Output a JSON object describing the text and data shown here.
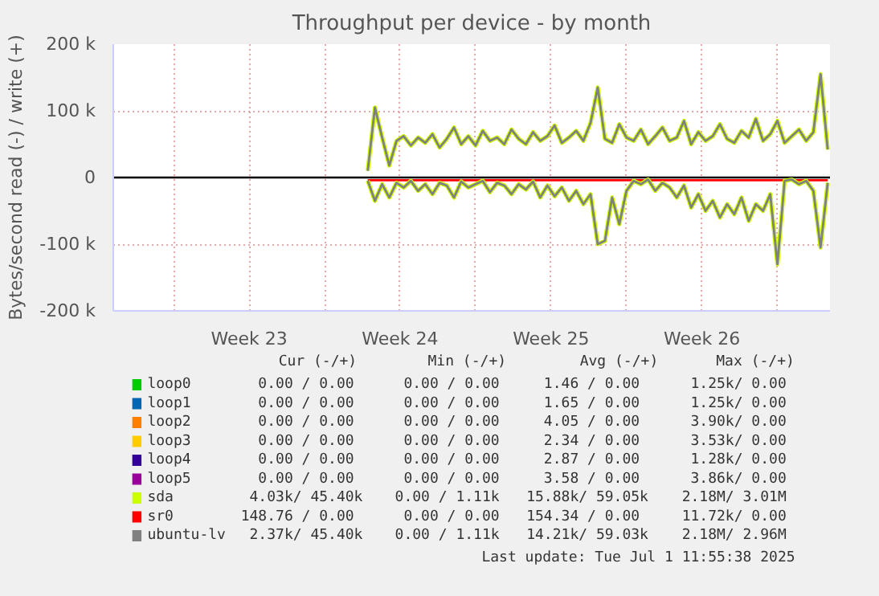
{
  "chart_data": {
    "type": "line",
    "title": "Throughput per device - by month",
    "ylabel": "Bytes/second read (-) / write (+)",
    "xlim": [
      "2025-05-29T04:45",
      "2025-07-01T10:30"
    ],
    "xticks": [
      {
        "value": "2025-06-01",
        "label": null
      },
      {
        "value": "2025-06-04T12:00",
        "label": "Week 23"
      },
      {
        "value": "2025-06-08",
        "label": null
      },
      {
        "value": "2025-06-11T12:00",
        "label": "Week 24"
      },
      {
        "value": "2025-06-15",
        "label": null
      },
      {
        "value": "2025-06-18T12:00",
        "label": "Week 25"
      },
      {
        "value": "2025-06-22",
        "label": null
      },
      {
        "value": "2025-06-25T12:00",
        "label": "Week 26"
      },
      {
        "value": "2025-06-29",
        "label": null
      }
    ],
    "ylim": [
      -200000,
      200000
    ],
    "yticks": [
      {
        "value": -200000,
        "label": "-200 k"
      },
      {
        "value": -100000,
        "label": "-100 k"
      },
      0,
      {
        "value": 100000,
        "label": "100 k"
      },
      {
        "value": 200000,
        "label": "200 k"
      }
    ],
    "grid": true,
    "legend": "bottom",
    "ref_lines": [
      {
        "axis": "y",
        "value": 0,
        "color": "#000000"
      }
    ],
    "x": [
      "2025-06-10T00:00",
      "2025-06-10T08:00",
      "2025-06-10T16:00",
      "2025-06-11T00:00",
      "2025-06-11T08:00",
      "2025-06-11T16:00",
      "2025-06-12T00:00",
      "2025-06-12T08:00",
      "2025-06-12T16:00",
      "2025-06-13T00:00",
      "2025-06-13T08:00",
      "2025-06-13T16:00",
      "2025-06-14T00:00",
      "2025-06-14T08:00",
      "2025-06-14T16:00",
      "2025-06-15T00:00",
      "2025-06-15T08:00",
      "2025-06-15T16:00",
      "2025-06-16T00:00",
      "2025-06-16T08:00",
      "2025-06-16T16:00",
      "2025-06-17T00:00",
      "2025-06-17T08:00",
      "2025-06-17T16:00",
      "2025-06-18T00:00",
      "2025-06-18T08:00",
      "2025-06-18T16:00",
      "2025-06-19T00:00",
      "2025-06-19T08:00",
      "2025-06-19T16:00",
      "2025-06-20T00:00",
      "2025-06-20T08:00",
      "2025-06-20T16:00",
      "2025-06-21T00:00",
      "2025-06-21T08:00",
      "2025-06-21T16:00",
      "2025-06-22T00:00",
      "2025-06-22T08:00",
      "2025-06-22T16:00",
      "2025-06-23T00:00",
      "2025-06-23T08:00",
      "2025-06-23T16:00",
      "2025-06-24T00:00",
      "2025-06-24T08:00",
      "2025-06-24T16:00",
      "2025-06-25T00:00",
      "2025-06-25T08:00",
      "2025-06-25T16:00",
      "2025-06-26T00:00",
      "2025-06-26T08:00",
      "2025-06-26T16:00",
      "2025-06-27T00:00",
      "2025-06-27T08:00",
      "2025-06-27T16:00",
      "2025-06-28T00:00",
      "2025-06-28T08:00",
      "2025-06-28T16:00",
      "2025-06-29T00:00",
      "2025-06-29T08:00",
      "2025-06-29T16:00",
      "2025-06-30T00:00",
      "2025-06-30T08:00",
      "2025-06-30T16:00",
      "2025-07-01T00:00",
      "2025-07-01T08:00"
    ],
    "series": [
      {
        "name": "loop0",
        "color": "#00cc00",
        "values": [
          null,
          null,
          null,
          null,
          null,
          null,
          null,
          null,
          null,
          null,
          null,
          null,
          null,
          null,
          null,
          null,
          null,
          null,
          null,
          null,
          null,
          null,
          null,
          null,
          null,
          null,
          null,
          null,
          null,
          null,
          null,
          null,
          null,
          null,
          null,
          null,
          null,
          null,
          null,
          null,
          null,
          null,
          null,
          null,
          null,
          null,
          null,
          null,
          null,
          null,
          null,
          null,
          null,
          null,
          null,
          null,
          null,
          null,
          null,
          null,
          null,
          null,
          null,
          null,
          null
        ]
      },
      {
        "name": "loop1",
        "color": "#0066b3",
        "values": [
          null,
          null,
          null,
          null,
          null,
          null,
          null,
          null,
          null,
          null,
          null,
          null,
          null,
          null,
          null,
          null,
          null,
          null,
          null,
          null,
          null,
          null,
          null,
          null,
          null,
          null,
          null,
          null,
          null,
          null,
          null,
          null,
          null,
          null,
          null,
          null,
          null,
          null,
          null,
          null,
          null,
          null,
          null,
          null,
          null,
          null,
          null,
          null,
          null,
          null,
          null,
          null,
          null,
          null,
          null,
          null,
          null,
          null,
          null,
          null,
          null,
          null,
          null,
          null,
          null
        ]
      },
      {
        "name": "loop2",
        "color": "#ff8000",
        "values": [
          null,
          null,
          null,
          null,
          null,
          null,
          null,
          null,
          null,
          null,
          null,
          null,
          null,
          null,
          null,
          null,
          null,
          null,
          null,
          null,
          null,
          null,
          null,
          null,
          null,
          null,
          null,
          null,
          null,
          null,
          null,
          null,
          null,
          null,
          null,
          null,
          null,
          null,
          null,
          null,
          null,
          null,
          null,
          null,
          null,
          null,
          null,
          null,
          null,
          null,
          null,
          null,
          null,
          null,
          null,
          null,
          null,
          null,
          null,
          null,
          null,
          null,
          null,
          null,
          null
        ]
      },
      {
        "name": "loop3",
        "color": "#ffcc00",
        "values": [
          null,
          null,
          null,
          null,
          null,
          null,
          null,
          null,
          null,
          null,
          null,
          null,
          null,
          null,
          null,
          null,
          null,
          null,
          null,
          null,
          null,
          null,
          null,
          null,
          null,
          null,
          null,
          null,
          null,
          null,
          null,
          null,
          null,
          null,
          null,
          null,
          null,
          null,
          null,
          null,
          null,
          null,
          null,
          null,
          null,
          null,
          null,
          null,
          null,
          null,
          null,
          null,
          null,
          null,
          null,
          null,
          null,
          null,
          null,
          null,
          null,
          null,
          null,
          null,
          null
        ]
      },
      {
        "name": "loop4",
        "color": "#330099",
        "values": [
          null,
          null,
          null,
          null,
          null,
          null,
          null,
          null,
          null,
          null,
          null,
          null,
          null,
          null,
          null,
          null,
          null,
          null,
          null,
          null,
          null,
          null,
          null,
          null,
          null,
          null,
          null,
          null,
          null,
          null,
          null,
          null,
          null,
          null,
          null,
          null,
          null,
          null,
          null,
          null,
          null,
          null,
          null,
          null,
          null,
          null,
          null,
          null,
          null,
          null,
          null,
          null,
          null,
          null,
          null,
          null,
          null,
          null,
          null,
          null,
          null,
          null,
          null,
          null,
          null
        ]
      },
      {
        "name": "loop5",
        "color": "#990099",
        "values": [
          null,
          null,
          null,
          null,
          null,
          null,
          null,
          null,
          null,
          null,
          null,
          null,
          null,
          null,
          null,
          null,
          null,
          null,
          null,
          null,
          null,
          null,
          null,
          null,
          null,
          null,
          null,
          null,
          null,
          null,
          null,
          null,
          null,
          null,
          null,
          null,
          null,
          null,
          null,
          null,
          null,
          null,
          null,
          null,
          null,
          null,
          null,
          null,
          null,
          null,
          null,
          null,
          null,
          null,
          null,
          null,
          null,
          null,
          null,
          null,
          null,
          null,
          null,
          null,
          null
        ]
      },
      {
        "name": "sda",
        "color": "#ccff00",
        "values": [
          10000,
          105000,
          60000,
          18000,
          55000,
          62000,
          48000,
          60000,
          52000,
          65000,
          45000,
          58000,
          75000,
          50000,
          62000,
          48000,
          70000,
          55000,
          60000,
          50000,
          72000,
          58000,
          50000,
          68000,
          55000,
          62000,
          78000,
          52000,
          60000,
          70000,
          55000,
          82000,
          135000,
          58000,
          52000,
          80000,
          60000,
          55000,
          72000,
          50000,
          62000,
          75000,
          55000,
          60000,
          85000,
          50000,
          68000,
          55000,
          62000,
          80000,
          58000,
          52000,
          70000,
          60000,
          88000,
          55000,
          65000,
          85000,
          52000,
          62000,
          72000,
          55000,
          68000,
          155000,
          42000
        ]
      },
      {
        "name": "sr0",
        "color": "#ff0000",
        "x": [
          "2025-06-10T00:00",
          "2025-07-01T08:00"
        ],
        "values": [
          -4000,
          -4000
        ]
      },
      {
        "name": "ubuntu-lv",
        "color": "#808080",
        "values": [
          10000,
          105000,
          60000,
          18000,
          55000,
          62000,
          48000,
          60000,
          52000,
          65000,
          45000,
          58000,
          75000,
          50000,
          62000,
          48000,
          70000,
          55000,
          60000,
          50000,
          72000,
          58000,
          50000,
          68000,
          55000,
          62000,
          78000,
          52000,
          60000,
          70000,
          55000,
          82000,
          135000,
          58000,
          52000,
          80000,
          60000,
          55000,
          72000,
          50000,
          62000,
          75000,
          55000,
          60000,
          85000,
          50000,
          68000,
          55000,
          62000,
          80000,
          58000,
          52000,
          70000,
          60000,
          88000,
          55000,
          65000,
          85000,
          52000,
          62000,
          72000,
          55000,
          68000,
          155000,
          42000
        ]
      },
      {
        "color": "#ccff00",
        "values": [
          -5000,
          -35000,
          -10000,
          -30000,
          -8000,
          -15000,
          -5000,
          -20000,
          -10000,
          -25000,
          -8000,
          -12000,
          -30000,
          -6000,
          -15000,
          -10000,
          -5000,
          -22000,
          -8000,
          -12000,
          -25000,
          -10000,
          -18000,
          -6000,
          -30000,
          -12000,
          -28000,
          -15000,
          -35000,
          -20000,
          -40000,
          -25000,
          -100000,
          -95000,
          -30000,
          -70000,
          -20000,
          -5000,
          -10000,
          -3000,
          -20000,
          -8000,
          -15000,
          -30000,
          -12000,
          -45000,
          -25000,
          -50000,
          -35000,
          -60000,
          -40000,
          -55000,
          -30000,
          -65000,
          -40000,
          -50000,
          -25000,
          -130000,
          -5000,
          -3000,
          -10000,
          -5000,
          -20000,
          -105000,
          -8000
        ]
      },
      {
        "color": "#808080",
        "values": [
          -5000,
          -35000,
          -10000,
          -30000,
          -8000,
          -15000,
          -5000,
          -20000,
          -10000,
          -25000,
          -8000,
          -12000,
          -30000,
          -6000,
          -15000,
          -10000,
          -5000,
          -22000,
          -8000,
          -12000,
          -25000,
          -10000,
          -18000,
          -6000,
          -30000,
          -12000,
          -28000,
          -15000,
          -35000,
          -20000,
          -40000,
          -25000,
          -100000,
          -95000,
          -30000,
          -70000,
          -20000,
          -5000,
          -10000,
          -3000,
          -20000,
          -8000,
          -15000,
          -30000,
          -12000,
          -45000,
          -25000,
          -50000,
          -35000,
          -60000,
          -40000,
          -55000,
          -30000,
          -65000,
          -40000,
          -50000,
          -25000,
          -130000,
          -5000,
          -3000,
          -10000,
          -5000,
          -20000,
          -105000,
          -8000
        ]
      }
    ],
    "annotations": [
      "Cur (-/+)",
      "Min (-/+)",
      "Avg (-/+)",
      "Max (-/+)",
      "0.00 /   0.00",
      "0.00 /   0.00",
      "1.46 /   0.00",
      "1.25k/   0.00",
      "0.00 /   0.00",
      "0.00 /   0.00",
      "1.65 /   0.00",
      "1.25k/   0.00",
      "0.00 /   0.00",
      "0.00 /   0.00",
      "4.05 /   0.00",
      "3.90k/   0.00",
      "0.00 /   0.00",
      "0.00 /   0.00",
      "2.34 /   0.00",
      "3.53k/   0.00",
      "0.00 /   0.00",
      "0.00 /   0.00",
      "2.87 /   0.00",
      "1.28k/   0.00",
      "0.00 /   0.00",
      "0.00 /   0.00",
      "3.58 /   0.00",
      "3.86k/   0.00",
      "4.03k/  45.40k",
      "0.00 /   1.11k",
      "15.88k/  59.05k",
      "2.18M/   3.01M",
      "148.76 /   0.00",
      "0.00 /   0.00",
      "154.34 /   0.00",
      "11.72k/   0.00",
      "2.37k/  45.40k",
      "0.00 /   1.11k",
      "14.21k/  59.03k",
      "2.18M/   2.96M",
      "Last update: Tue Jul  1 11:55:38 2025"
    ]
  }
}
